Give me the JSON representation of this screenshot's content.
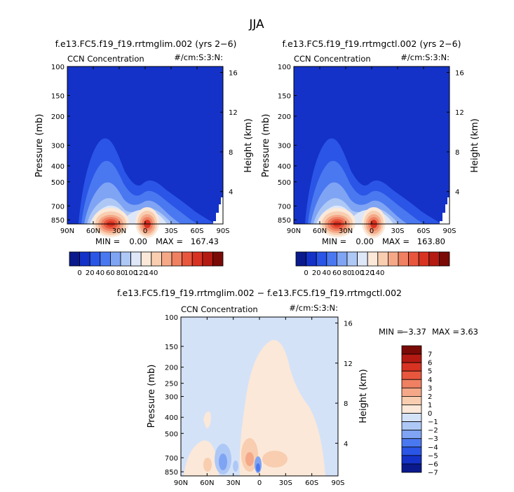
{
  "page": {
    "season": "JJA"
  },
  "chart_data": [
    {
      "type": "heatmap",
      "id": "top_left",
      "title": "f.e13.FC5.f19_f19.rrtmglim.002 (yrs 2−6)",
      "field_label": "CCN Concentration",
      "units_label": "#/cm:S:3:N:",
      "ylabel": "Pressure (mb)",
      "y2label": "Height (km)",
      "x_ticks": [
        "90N",
        "60N",
        "30N",
        "0",
        "30S",
        "60S",
        "90S"
      ],
      "y_ticks": [
        "100",
        "150",
        "200",
        "300",
        "400",
        "500",
        "700",
        "850"
      ],
      "y2_ticks": [
        "16",
        "12",
        "8",
        "4"
      ],
      "min_label": "MIN =",
      "min_value": "0.00",
      "max_label": "MAX =",
      "max_value": "167.43",
      "min": 0.0,
      "max": 167.43,
      "colorbar_ticks": [
        "0",
        "20",
        "40",
        "60",
        "80",
        "100",
        "120",
        "140"
      ]
    },
    {
      "type": "heatmap",
      "id": "top_right",
      "title": "f.e13.FC5.f19_f19.rrtmgctl.002 (yrs 2−6)",
      "field_label": "CCN Concentration",
      "units_label": "#/cm:S:3:N:",
      "ylabel": "Pressure (mb)",
      "y2label": "Height (km)",
      "x_ticks": [
        "90N",
        "60N",
        "30N",
        "0",
        "30S",
        "60S",
        "90S"
      ],
      "y_ticks": [
        "100",
        "150",
        "200",
        "300",
        "400",
        "500",
        "700",
        "850"
      ],
      "y2_ticks": [
        "16",
        "12",
        "8",
        "4"
      ],
      "min_label": "MIN =",
      "min_value": "0.00",
      "max_label": "MAX =",
      "max_value": "163.80",
      "min": 0.0,
      "max": 163.8,
      "colorbar_ticks": [
        "0",
        "20",
        "40",
        "60",
        "80",
        "100",
        "120",
        "140"
      ]
    },
    {
      "type": "heatmap",
      "id": "difference",
      "title": "f.e13.FC5.f19_f19.rrtmglim.002 − f.e13.FC5.f19_f19.rrtmgctl.002",
      "field_label": "CCN Concentration",
      "units_label": "#/cm:S:3:N:",
      "ylabel": "Pressure (mb)",
      "y2label": "Height (km)",
      "x_ticks": [
        "90N",
        "60N",
        "30N",
        "0",
        "30S",
        "60S",
        "90S"
      ],
      "y_ticks": [
        "100",
        "150",
        "200",
        "250",
        "300",
        "400",
        "500",
        "700",
        "850"
      ],
      "y2_ticks": [
        "16",
        "12",
        "8",
        "4"
      ],
      "min_label": "MIN =",
      "min_value": "−3.37",
      "max_label": "MAX =",
      "max_value": "3.63",
      "min": -3.37,
      "max": 3.63,
      "colorbar_ticks": [
        "7",
        "6",
        "5",
        "4",
        "3",
        "2",
        "1",
        "0",
        "−1",
        "−2",
        "−3",
        "−4",
        "−5",
        "−6",
        "−7"
      ]
    }
  ],
  "colors": {
    "abs_scale": [
      "#0a1a8c",
      "#1432c8",
      "#2a55e6",
      "#4a78f0",
      "#7fa4f4",
      "#aec8f6",
      "#dde7f8",
      "#fbe8d8",
      "#f8cdb0",
      "#f4a888",
      "#ef8062",
      "#e8563e",
      "#d83222",
      "#b41a12",
      "#7a0a06"
    ],
    "diff_scale": [
      "#7a0a06",
      "#b41a12",
      "#d83222",
      "#e8563e",
      "#ef8062",
      "#f4a888",
      "#f8cdb0",
      "#fbe8d8",
      "#d4e2f8",
      "#aec8f6",
      "#7fa4f4",
      "#4a78f0",
      "#2a55e6",
      "#1432c8",
      "#0a1a8c"
    ],
    "background_abs": "#1432c8",
    "background_diff": "#d4e2f8"
  }
}
